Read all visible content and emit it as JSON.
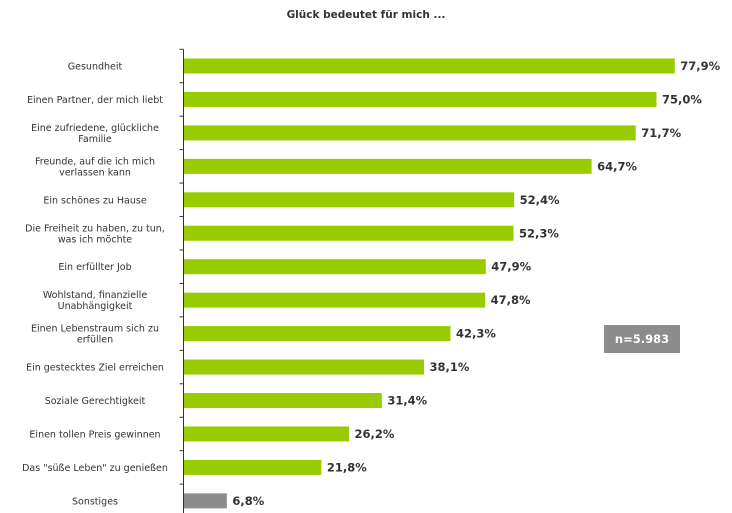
{
  "chart_data": {
    "type": "bar",
    "orientation": "horizontal",
    "title": "Glück bedeutet für mich ...",
    "categories": [
      "Gesundheit",
      "Einen Partner, der mich liebt",
      "Eine zufriedene, glückliche Familie",
      "Freunde, auf die ich mich verlassen kann",
      "Ein schönes zu Hause",
      "Die Freiheit zu haben, zu tun, was ich möchte",
      "Ein erfüllter Job",
      "Wohlstand, finanzielle Unabhängigkeit",
      "Einen Lebenstraum sich zu erfüllen",
      "Ein gestecktes Ziel erreichen",
      "Soziale Gerechtigkeit",
      "Einen tollen Preis gewinnen",
      "Das \"süße Leben\" zu genießen",
      "Sonstiges"
    ],
    "category_lines": [
      [
        "Gesundheit"
      ],
      [
        "Einen Partner, der mich liebt"
      ],
      [
        "Eine zufriedene, glückliche",
        "Familie"
      ],
      [
        "Freunde, auf die ich mich",
        "verlassen kann"
      ],
      [
        "Ein schönes zu Hause"
      ],
      [
        "Die Freiheit zu haben, zu tun,",
        "was ich möchte"
      ],
      [
        "Ein erfüllter Job"
      ],
      [
        "Wohlstand, finanzielle",
        "Unabhängigkeit"
      ],
      [
        "Einen Lebenstraum sich zu",
        "erfüllen"
      ],
      [
        "Ein gestecktes Ziel erreichen"
      ],
      [
        "Soziale Gerechtigkeit"
      ],
      [
        "Einen tollen Preis gewinnen"
      ],
      [
        "Das \"süße Leben\" zu genießen"
      ],
      [
        "Sonstiges"
      ]
    ],
    "values": [
      77.9,
      75.0,
      71.7,
      64.7,
      52.4,
      52.3,
      47.9,
      47.8,
      42.3,
      38.1,
      31.4,
      26.2,
      21.8,
      6.8
    ],
    "value_labels": [
      "77,9%",
      "75,0%",
      "71,7%",
      "64,7%",
      "52,4%",
      "52,3%",
      "47,9%",
      "47,8%",
      "42,3%",
      "38,1%",
      "31,4%",
      "26,2%",
      "21,8%",
      "6,8%"
    ],
    "unit": "%",
    "xlim": [
      0,
      100
    ],
    "colors": {
      "bar": "#99cc00",
      "bar_other": "#8c8c8c",
      "axis": "#333333"
    },
    "annotation": "n=5.983"
  }
}
